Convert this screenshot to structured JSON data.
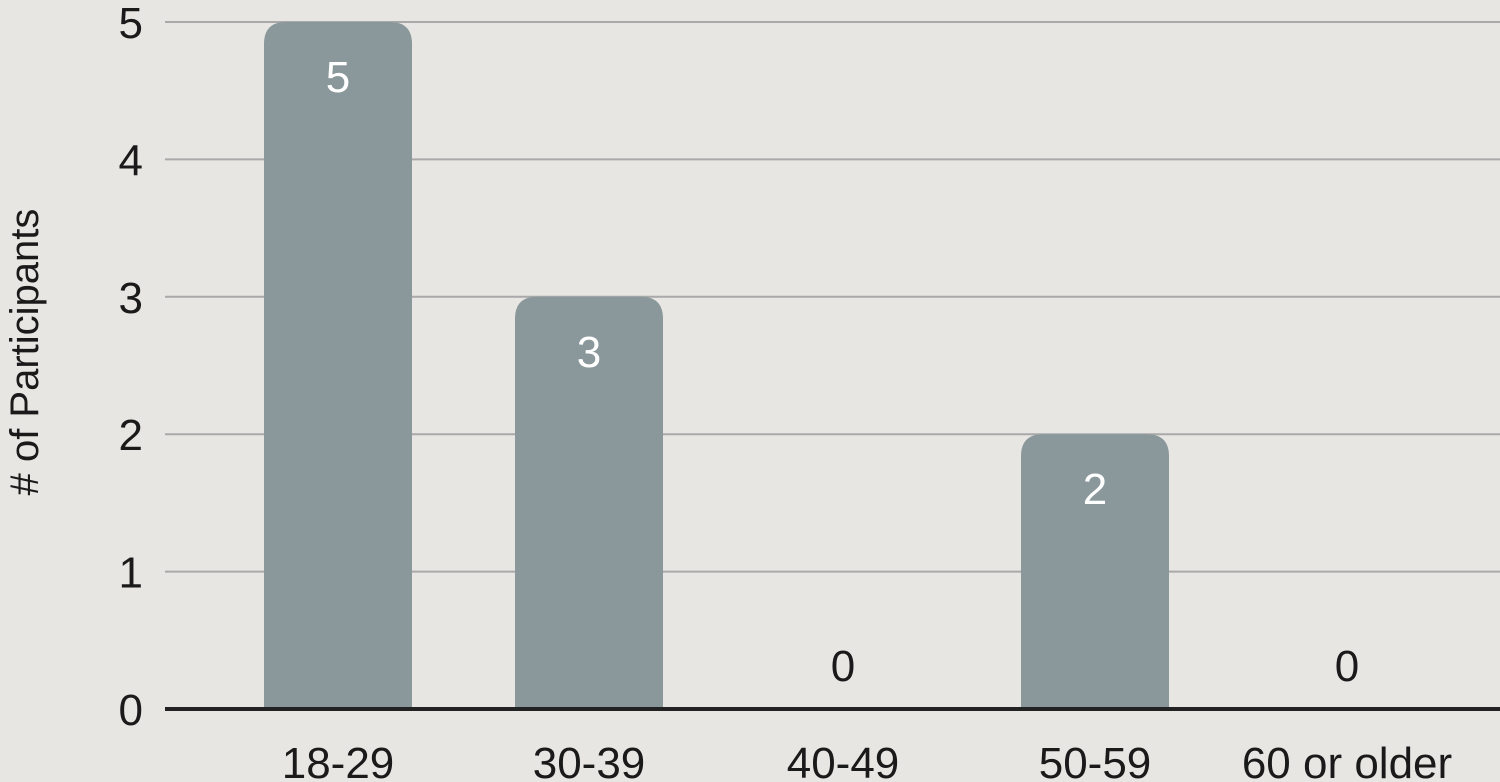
{
  "chart_data": {
    "type": "bar",
    "categories": [
      "18-29",
      "30-39",
      "40-49",
      "50-59",
      "60 or older"
    ],
    "values": [
      5,
      3,
      0,
      2,
      0
    ],
    "title": "",
    "xlabel": "",
    "ylabel": "# of Participants",
    "ylim": [
      0,
      5
    ],
    "yticks": [
      0,
      1,
      2,
      3,
      4,
      5
    ],
    "grid": true,
    "data_labels": true,
    "colors": {
      "background": "#e8e6e2",
      "bar": "#8a989b",
      "gridline": "#a9a9a9",
      "baseline": "#222222",
      "label_on_bar": "#ffffff",
      "label_off_bar": "#1a1a1a",
      "text": "#1a1a1a"
    }
  }
}
